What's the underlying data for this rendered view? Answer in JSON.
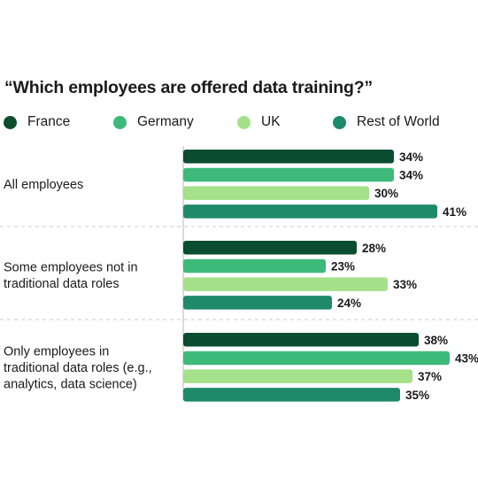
{
  "chart_data": {
    "type": "bar",
    "orientation": "horizontal",
    "title": "“Which employees are offered data training?”",
    "categories": [
      [
        "All employees"
      ],
      [
        "Some employees not in",
        "traditional data roles"
      ],
      [
        "Only employees in",
        "traditional data roles (e.g.,",
        "analytics, data science)"
      ]
    ],
    "series": [
      {
        "name": "France",
        "color": "#0b4d2f",
        "values": [
          34,
          28,
          38
        ],
        "labels": [
          "34%",
          "28%",
          "38%"
        ]
      },
      {
        "name": "Germany",
        "color": "#3dba7a",
        "values": [
          34,
          23,
          43
        ],
        "labels": [
          "34%",
          "23%",
          "43%"
        ]
      },
      {
        "name": "UK",
        "color": "#a5e08a",
        "values": [
          30,
          33,
          37
        ],
        "labels": [
          "30%",
          "33%",
          "37%"
        ]
      },
      {
        "name": "Rest of World",
        "color": "#1e8a6a",
        "values": [
          41,
          24,
          35
        ],
        "labels": [
          "41%",
          "24%",
          "35%"
        ]
      }
    ],
    "value_suffix": "%",
    "legend_position": "top",
    "grid": false
  }
}
